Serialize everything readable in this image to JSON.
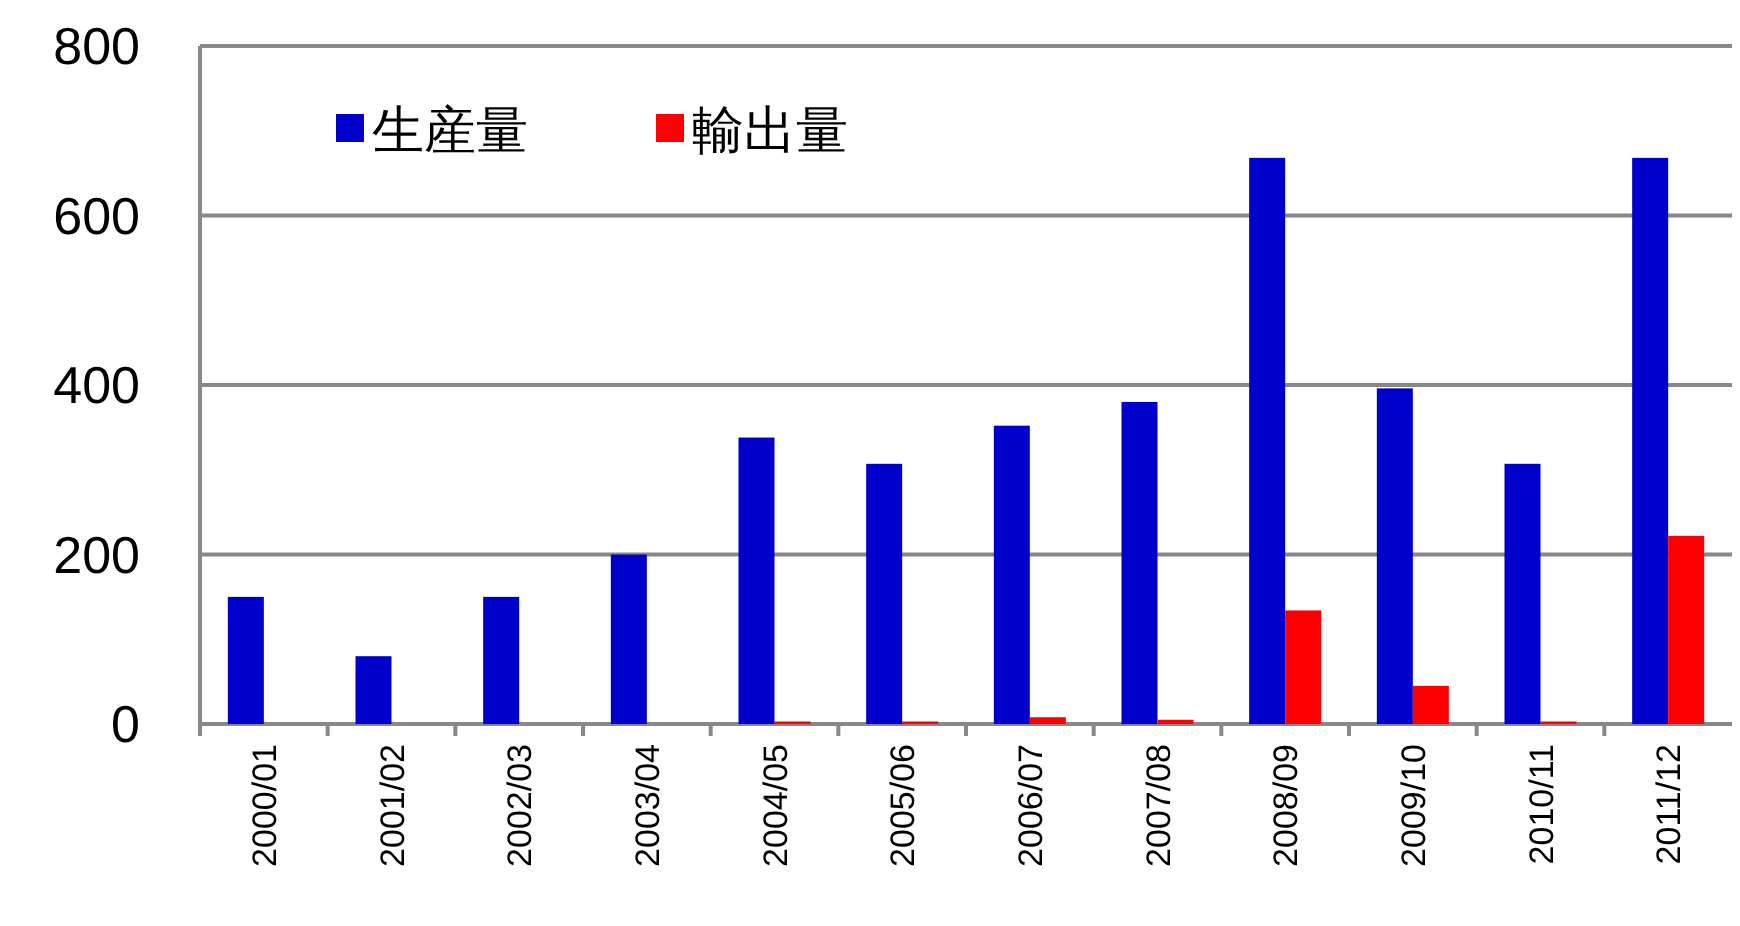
{
  "chart_data": {
    "type": "bar",
    "categories": [
      "2000/01",
      "2001/02",
      "2002/03",
      "2003/04",
      "2004/05",
      "2005/06",
      "2006/07",
      "2007/08",
      "2008/09",
      "2009/10",
      "2010/11",
      "2011/12"
    ],
    "series": [
      {
        "name": "生産量",
        "color": "#0000cc",
        "values": [
          150,
          80,
          150,
          200,
          338,
          307,
          352,
          380,
          668,
          396,
          307,
          668
        ]
      },
      {
        "name": "輸出量",
        "color": "#ff0000",
        "values": [
          null,
          null,
          null,
          null,
          3,
          3,
          8,
          5,
          134,
          45,
          3,
          222
        ]
      }
    ],
    "ylim": [
      0,
      800
    ],
    "yticks": [
      0,
      200,
      400,
      600,
      800
    ],
    "grid": "y",
    "legend": "top left"
  }
}
